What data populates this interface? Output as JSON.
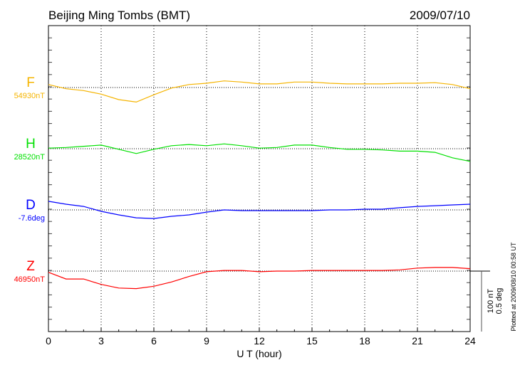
{
  "chart_data": {
    "type": "line",
    "title": "Beijing Ming Tombs (BMT)",
    "date": "2009/07/10",
    "xlabel": "U T (hour)",
    "xlim": [
      0,
      24
    ],
    "xticks": [
      "0",
      "3",
      "6",
      "9",
      "12",
      "15",
      "18",
      "21",
      "24"
    ],
    "grid": true,
    "x": [
      0,
      1,
      2,
      3,
      4,
      5,
      6,
      7,
      8,
      9,
      10,
      11,
      12,
      13,
      14,
      15,
      16,
      17,
      18,
      19,
      20,
      21,
      22,
      23,
      24
    ],
    "series": [
      {
        "name": "F",
        "baseline_label": "54930nT",
        "baseline": 54930,
        "unit": "nT",
        "color": "#f5b400",
        "values": [
          54935,
          54928,
          54925,
          54919,
          54910,
          54906,
          54918,
          54929,
          54935,
          54937,
          54941,
          54939,
          54936,
          54936,
          54939,
          54939,
          54937,
          54936,
          54936,
          54936,
          54937,
          54937,
          54938,
          54935,
          54928
        ]
      },
      {
        "name": "H",
        "baseline_label": "28520nT",
        "baseline": 28520,
        "unit": "nT",
        "color": "#00e000",
        "values": [
          28521,
          28522,
          28524,
          28526,
          28519,
          28512,
          28519,
          28525,
          28527,
          28525,
          28528,
          28525,
          28521,
          28522,
          28526,
          28526,
          28522,
          28519,
          28519,
          28518,
          28516,
          28516,
          28514,
          28505,
          28499
        ]
      },
      {
        "name": "D",
        "baseline_label": "-7.6deg",
        "baseline": -7.6,
        "unit": "deg",
        "color": "#0000ff",
        "values": [
          -7.529,
          -7.553,
          -7.571,
          -7.612,
          -7.641,
          -7.665,
          -7.671,
          -7.653,
          -7.641,
          -7.618,
          -7.6,
          -7.606,
          -7.606,
          -7.606,
          -7.606,
          -7.606,
          -7.6,
          -7.6,
          -7.594,
          -7.594,
          -7.582,
          -7.571,
          -7.565,
          -7.559,
          -7.553
        ]
      },
      {
        "name": "Z",
        "baseline_label": "46950nT",
        "baseline": 46950,
        "unit": "nT",
        "color": "#ff0000",
        "values": [
          46948,
          46937,
          46937,
          46928,
          46922,
          46921,
          46925,
          46932,
          46941,
          46949,
          46951,
          46951,
          46949,
          46950,
          46950,
          46951,
          46951,
          46951,
          46951,
          46951,
          46952,
          46955,
          46956,
          46956,
          46954
        ]
      }
    ],
    "scale_bar": {
      "nT_label": "100 nT",
      "deg_label": "0.5 deg"
    },
    "footer": "Plotted at 2009/08/10 00:58 UT"
  }
}
